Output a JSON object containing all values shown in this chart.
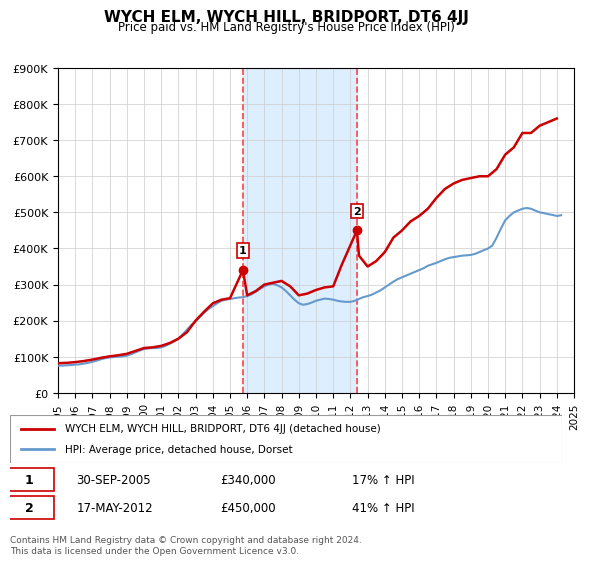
{
  "title": "WYCH ELM, WYCH HILL, BRIDPORT, DT6 4JJ",
  "subtitle": "Price paid vs. HM Land Registry's House Price Index (HPI)",
  "ylabel": "",
  "ylim": [
    0,
    900000
  ],
  "yticks": [
    0,
    100000,
    200000,
    300000,
    400000,
    500000,
    600000,
    700000,
    800000,
    900000
  ],
  "ytick_labels": [
    "£0",
    "£100K",
    "£200K",
    "£300K",
    "£400K",
    "£500K",
    "£600K",
    "£700K",
    "£800K",
    "£900K"
  ],
  "xmin": 1995,
  "xmax": 2025,
  "sale1_x": 2005.75,
  "sale1_y": 340000,
  "sale1_label": "1",
  "sale1_date": "30-SEP-2005",
  "sale1_price": "£340,000",
  "sale1_hpi": "17% ↑ HPI",
  "sale2_x": 2012.38,
  "sale2_y": 450000,
  "sale2_label": "2",
  "sale2_date": "17-MAY-2012",
  "sale2_price": "£450,000",
  "sale2_hpi": "41% ↑ HPI",
  "line1_color": "#cc0000",
  "line2_color": "#6699cc",
  "line1_label": "WYCH ELM, WYCH HILL, BRIDPORT, DT6 4JJ (detached house)",
  "line2_label": "HPI: Average price, detached house, Dorset",
  "shaded_color": "#ddeeff",
  "vline_color": "#ff4444",
  "marker_color": "#cc0000",
  "background_color": "#ffffff",
  "footer": "Contains HM Land Registry data © Crown copyright and database right 2024.\nThis data is licensed under the Open Government Licence v3.0.",
  "hpi_data_x": [
    1995,
    1995.25,
    1995.5,
    1995.75,
    1996,
    1996.25,
    1996.5,
    1996.75,
    1997,
    1997.25,
    1997.5,
    1997.75,
    1998,
    1998.25,
    1998.5,
    1998.75,
    1999,
    1999.25,
    1999.5,
    1999.75,
    2000,
    2000.25,
    2000.5,
    2000.75,
    2001,
    2001.25,
    2001.5,
    2001.75,
    2002,
    2002.25,
    2002.5,
    2002.75,
    2003,
    2003.25,
    2003.5,
    2003.75,
    2004,
    2004.25,
    2004.5,
    2004.75,
    2005,
    2005.25,
    2005.5,
    2005.75,
    2006,
    2006.25,
    2006.5,
    2006.75,
    2007,
    2007.25,
    2007.5,
    2007.75,
    2008,
    2008.25,
    2008.5,
    2008.75,
    2009,
    2009.25,
    2009.5,
    2009.75,
    2010,
    2010.25,
    2010.5,
    2010.75,
    2011,
    2011.25,
    2011.5,
    2011.75,
    2012,
    2012.25,
    2012.5,
    2012.75,
    2013,
    2013.25,
    2013.5,
    2013.75,
    2014,
    2014.25,
    2014.5,
    2014.75,
    2015,
    2015.25,
    2015.5,
    2015.75,
    2016,
    2016.25,
    2016.5,
    2016.75,
    2017,
    2017.25,
    2017.5,
    2017.75,
    2018,
    2018.25,
    2018.5,
    2018.75,
    2019,
    2019.25,
    2019.5,
    2019.75,
    2020,
    2020.25,
    2020.5,
    2020.75,
    2021,
    2021.25,
    2021.5,
    2021.75,
    2022,
    2022.25,
    2022.5,
    2022.75,
    2023,
    2023.25,
    2023.5,
    2023.75,
    2024,
    2024.25
  ],
  "hpi_data_y": [
    75000,
    75500,
    76000,
    77000,
    78000,
    79000,
    81000,
    83000,
    86000,
    89000,
    93000,
    96000,
    98000,
    99000,
    100000,
    101000,
    103000,
    107000,
    112000,
    117000,
    121000,
    123000,
    124000,
    124000,
    126000,
    130000,
    136000,
    142000,
    150000,
    162000,
    175000,
    188000,
    198000,
    210000,
    222000,
    232000,
    240000,
    248000,
    255000,
    258000,
    260000,
    262000,
    264000,
    265000,
    268000,
    273000,
    280000,
    288000,
    295000,
    300000,
    302000,
    298000,
    292000,
    282000,
    270000,
    258000,
    248000,
    244000,
    246000,
    250000,
    255000,
    258000,
    261000,
    260000,
    258000,
    255000,
    253000,
    252000,
    252000,
    255000,
    260000,
    265000,
    268000,
    272000,
    278000,
    284000,
    292000,
    300000,
    308000,
    315000,
    320000,
    325000,
    330000,
    335000,
    340000,
    345000,
    352000,
    356000,
    360000,
    365000,
    370000,
    374000,
    376000,
    378000,
    380000,
    381000,
    382000,
    385000,
    390000,
    395000,
    400000,
    408000,
    430000,
    455000,
    478000,
    490000,
    500000,
    505000,
    510000,
    512000,
    510000,
    505000,
    500000,
    498000,
    495000,
    493000,
    490000,
    492000
  ],
  "price_data_x": [
    1995,
    1995.5,
    1996,
    1996.5,
    1997,
    1997.5,
    1998,
    1998.5,
    1999,
    1999.5,
    2000,
    2000.5,
    2001,
    2001.5,
    2002,
    2002.5,
    2003,
    2003.5,
    2004,
    2004.5,
    2005,
    2005.75,
    2006,
    2006.5,
    2007,
    2007.5,
    2008,
    2008.5,
    2009,
    2009.5,
    2010,
    2010.5,
    2011,
    2011.5,
    2012.38,
    2012.5,
    2013,
    2013.5,
    2014,
    2014.5,
    2015,
    2015.5,
    2016,
    2016.5,
    2017,
    2017.5,
    2018,
    2018.5,
    2019,
    2019.5,
    2020,
    2020.5,
    2021,
    2021.5,
    2022,
    2022.5,
    2023,
    2023.5,
    2024
  ],
  "price_data_y": [
    82000,
    83000,
    85000,
    88000,
    92000,
    97000,
    101000,
    104000,
    108000,
    116000,
    124000,
    126000,
    130000,
    138000,
    150000,
    168000,
    200000,
    225000,
    248000,
    258000,
    262000,
    340000,
    270000,
    282000,
    300000,
    305000,
    310000,
    295000,
    270000,
    275000,
    285000,
    292000,
    295000,
    355000,
    450000,
    380000,
    350000,
    365000,
    390000,
    430000,
    450000,
    475000,
    490000,
    510000,
    540000,
    565000,
    580000,
    590000,
    595000,
    600000,
    600000,
    620000,
    660000,
    680000,
    720000,
    720000,
    740000,
    750000,
    760000
  ]
}
